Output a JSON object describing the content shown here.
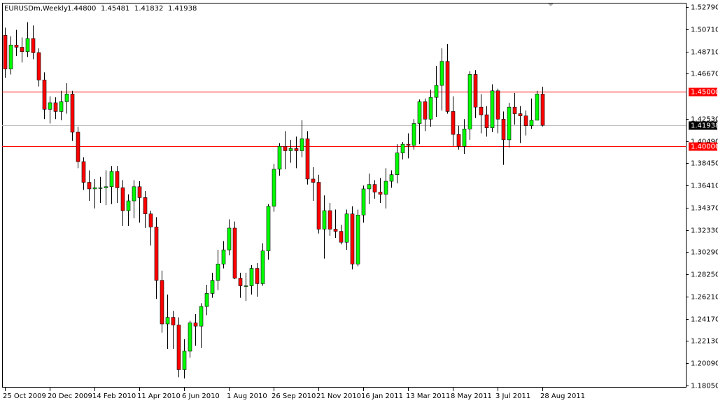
{
  "chart_data": {
    "type": "candlestick",
    "title": "EURUSDm,Weekly",
    "ohlc_labels": [
      "1.44800",
      "1.45481",
      "1.41832",
      "1.41938"
    ],
    "categories": [
      "25 Oct 2009",
      null,
      null,
      null,
      null,
      null,
      null,
      null,
      "20 Dec 2009",
      null,
      null,
      null,
      null,
      null,
      null,
      null,
      "14 Feb 2010",
      null,
      null,
      null,
      null,
      null,
      null,
      null,
      "11 Apr 2010",
      null,
      null,
      null,
      null,
      null,
      null,
      null,
      "6 Jun 2010",
      null,
      null,
      null,
      null,
      null,
      null,
      null,
      "1 Aug 2010",
      null,
      null,
      null,
      null,
      null,
      null,
      null,
      "26 Sep 2010",
      null,
      null,
      null,
      null,
      null,
      null,
      null,
      "21 Nov 2010",
      null,
      null,
      null,
      null,
      null,
      null,
      null,
      "16 Jan 2011",
      null,
      null,
      null,
      null,
      null,
      null,
      null,
      "13 Mar 2011",
      null,
      null,
      null,
      null,
      null,
      null,
      null,
      "8 May 2011",
      null,
      null,
      null,
      null,
      null,
      null,
      null,
      "3 Jul 2011",
      null,
      null,
      null,
      null,
      null,
      null,
      null,
      "28 Aug 2011"
    ],
    "open": [
      1.502,
      1.471,
      1.493,
      1.491,
      1.487,
      1.499,
      1.486,
      1.461,
      1.434,
      1.44,
      1.432,
      1.441,
      1.448,
      1.413,
      1.386,
      1.367,
      1.361,
      1.362,
      1.362,
      1.363,
      1.377,
      1.362,
      1.341,
      1.35,
      1.363,
      1.353,
      1.338,
      1.326,
      1.277,
      1.237,
      1.243,
      1.236,
      1.195,
      1.212,
      1.238,
      1.235,
      1.253,
      1.265,
      1.277,
      1.292,
      1.305,
      1.325,
      1.279,
      1.272,
      1.272,
      1.288,
      1.274,
      1.304,
      1.345,
      1.379,
      1.4,
      1.396,
      1.398,
      1.396,
      1.407,
      1.37,
      1.367,
      1.324,
      1.341,
      1.324,
      1.322,
      1.312,
      1.338,
      1.292,
      1.337,
      1.361,
      1.365,
      1.358,
      1.356,
      1.368,
      1.374,
      1.394,
      1.402,
      1.401,
      1.421,
      1.441,
      1.425,
      1.445,
      1.456,
      1.478,
      1.432,
      1.411,
      1.4,
      1.416,
      1.466,
      1.436,
      1.429,
      1.417,
      1.451,
      1.425,
      1.406,
      1.436,
      1.43,
      1.428,
      1.419,
      1.424,
      1.448
    ],
    "high": [
      1.509,
      1.501,
      1.507,
      1.5,
      1.514,
      1.511,
      1.49,
      1.468,
      1.446,
      1.445,
      1.451,
      1.458,
      1.451,
      1.418,
      1.39,
      1.378,
      1.37,
      1.372,
      1.378,
      1.382,
      1.382,
      1.369,
      1.356,
      1.369,
      1.368,
      1.359,
      1.341,
      1.335,
      1.286,
      1.264,
      1.249,
      1.243,
      1.223,
      1.24,
      1.246,
      1.256,
      1.273,
      1.284,
      1.305,
      1.313,
      1.333,
      1.331,
      1.284,
      1.284,
      1.291,
      1.293,
      1.311,
      1.347,
      1.384,
      1.403,
      1.414,
      1.406,
      1.409,
      1.424,
      1.414,
      1.381,
      1.374,
      1.355,
      1.348,
      1.342,
      1.328,
      1.342,
      1.345,
      1.342,
      1.364,
      1.375,
      1.369,
      1.371,
      1.38,
      1.378,
      1.402,
      1.404,
      1.412,
      1.425,
      1.443,
      1.444,
      1.452,
      1.474,
      1.49,
      1.494,
      1.446,
      1.419,
      1.425,
      1.469,
      1.47,
      1.448,
      1.437,
      1.457,
      1.453,
      1.432,
      1.44,
      1.449,
      1.437,
      1.433,
      1.444,
      1.451,
      1.45481
    ],
    "low": [
      1.463,
      1.466,
      1.483,
      1.477,
      1.482,
      1.48,
      1.455,
      1.425,
      1.421,
      1.425,
      1.424,
      1.43,
      1.405,
      1.38,
      1.36,
      1.35,
      1.343,
      1.348,
      1.346,
      1.347,
      1.348,
      1.327,
      1.327,
      1.334,
      1.33,
      1.325,
      1.309,
      1.26,
      1.229,
      1.214,
      1.214,
      1.188,
      1.187,
      1.206,
      1.217,
      1.215,
      1.245,
      1.261,
      1.268,
      1.288,
      1.3,
      1.278,
      1.261,
      1.258,
      1.264,
      1.262,
      1.272,
      1.296,
      1.34,
      1.373,
      1.379,
      1.385,
      1.38,
      1.39,
      1.365,
      1.35,
      1.32,
      1.297,
      1.318,
      1.316,
      1.31,
      1.305,
      1.287,
      1.29,
      1.33,
      1.347,
      1.352,
      1.348,
      1.343,
      1.362,
      1.366,
      1.388,
      1.389,
      1.397,
      1.402,
      1.414,
      1.418,
      1.427,
      1.433,
      1.43,
      1.4,
      1.397,
      1.393,
      1.406,
      1.426,
      1.412,
      1.409,
      1.413,
      1.412,
      1.383,
      1.399,
      1.42,
      1.403,
      1.41,
      1.416,
      1.425,
      1.41832
    ],
    "close": [
      1.471,
      1.493,
      1.491,
      1.487,
      1.499,
      1.486,
      1.461,
      1.434,
      1.44,
      1.432,
      1.441,
      1.448,
      1.413,
      1.386,
      1.367,
      1.361,
      1.362,
      1.362,
      1.363,
      1.377,
      1.362,
      1.341,
      1.35,
      1.363,
      1.353,
      1.338,
      1.326,
      1.277,
      1.237,
      1.243,
      1.236,
      1.195,
      1.212,
      1.238,
      1.235,
      1.253,
      1.265,
      1.277,
      1.292,
      1.305,
      1.325,
      1.279,
      1.272,
      1.272,
      1.288,
      1.274,
      1.304,
      1.345,
      1.379,
      1.4,
      1.396,
      1.398,
      1.396,
      1.407,
      1.37,
      1.367,
      1.324,
      1.341,
      1.324,
      1.322,
      1.312,
      1.338,
      1.292,
      1.337,
      1.361,
      1.365,
      1.358,
      1.356,
      1.368,
      1.374,
      1.394,
      1.402,
      1.401,
      1.421,
      1.441,
      1.425,
      1.445,
      1.456,
      1.478,
      1.432,
      1.411,
      1.4,
      1.416,
      1.466,
      1.436,
      1.429,
      1.417,
      1.451,
      1.425,
      1.406,
      1.436,
      1.43,
      1.428,
      1.419,
      1.424,
      1.448,
      1.41938
    ],
    "up_color": "#00ff00",
    "down_color": "#ff0000",
    "ylim": [
      1.1792,
      1.5318
    ],
    "yticks": [
      {
        "value": 1.5279,
        "label": "1.52790"
      },
      {
        "value": 1.5071,
        "label": "1.50710"
      },
      {
        "value": 1.4871,
        "label": "1.48710"
      },
      {
        "value": 1.4667,
        "label": "1.46670"
      },
      {
        "value": 1.4253,
        "label": "1.42530"
      },
      {
        "value": 1.4049,
        "label": "1.40490"
      },
      {
        "value": 1.3845,
        "label": "1.38450"
      },
      {
        "value": 1.3641,
        "label": "1.36410"
      },
      {
        "value": 1.3437,
        "label": "1.34370"
      },
      {
        "value": 1.3233,
        "label": "1.32330"
      },
      {
        "value": 1.3029,
        "label": "1.30290"
      },
      {
        "value": 1.2825,
        "label": "1.28250"
      },
      {
        "value": 1.2621,
        "label": "1.26210"
      },
      {
        "value": 1.2417,
        "label": "1.24170"
      },
      {
        "value": 1.2213,
        "label": "1.22130"
      },
      {
        "value": 1.2009,
        "label": "1.20090"
      },
      {
        "value": 1.1805,
        "label": "1.18050"
      }
    ],
    "hlines": [
      {
        "value": 1.45,
        "label": "1.45000",
        "color": "#ff0000"
      },
      {
        "value": 1.4,
        "label": "1.40000",
        "color": "#ff0000"
      }
    ],
    "price_line": {
      "value": 1.41938,
      "label": "1.41938",
      "color": "#c0c0c0"
    }
  }
}
